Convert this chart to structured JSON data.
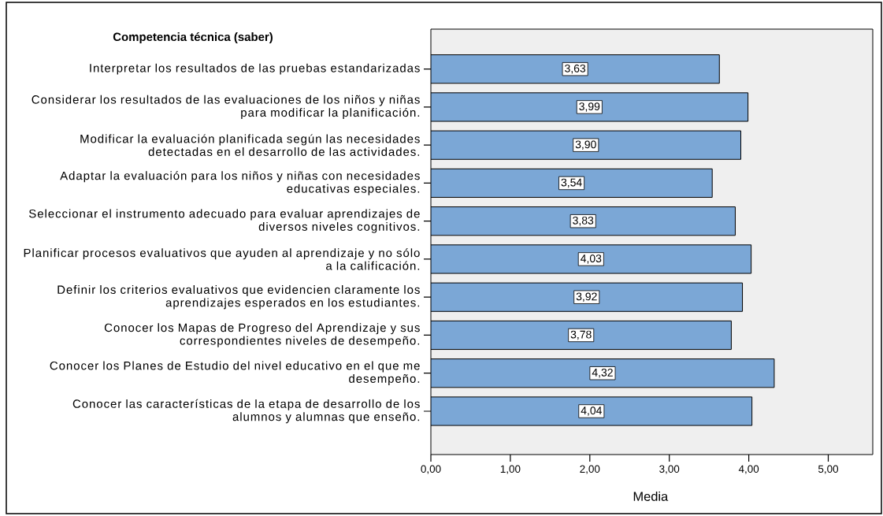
{
  "chart_data": {
    "type": "bar",
    "orientation": "horizontal",
    "title": "Competencia técnica (saber)",
    "xlabel": "Media",
    "categories": [
      "Interpretar los resultados de las pruebas estandarizadas",
      "Considerar los resultados de las evaluaciones de los niños y niñas para modificar la planificación.",
      "Modificar la evaluación planificada según las necesidades detectadas en el desarrollo de las actividades.",
      "Adaptar la evaluación para los niños y niñas con necesidades educativas especiales.",
      "Seleccionar el instrumento adecuado para evaluar aprendizajes de diversos niveles cognitivos.",
      "Planificar procesos evaluativos que ayuden al aprendizaje y no sólo a la calificación.",
      "Definir los criterios evaluativos que evidencien claramente los aprendizajes esperados en los estudiantes.",
      "Conocer los Mapas de Progreso del Aprendizaje y sus correspondientes niveles de desempeño.",
      "Conocer los Planes de Estudio del nivel educativo en el que me desempeño.",
      "Conocer las características de la etapa de desarrollo de los alumnos y alumnas que enseño."
    ],
    "values": [
      3.63,
      3.99,
      3.9,
      3.54,
      3.83,
      4.03,
      3.92,
      3.78,
      4.32,
      4.04
    ],
    "value_labels": [
      "3,63",
      "3,99",
      "3,90",
      "3,54",
      "3,83",
      "4,03",
      "3,92",
      "3,78",
      "4,32",
      "4,04"
    ],
    "color": "#7ba7d6",
    "xlim": [
      0,
      5.56
    ],
    "xticks": [
      {
        "value": 0,
        "label": "0,00"
      },
      {
        "value": 1,
        "label": "1,00"
      },
      {
        "value": 2,
        "label": "2,00"
      },
      {
        "value": 3,
        "label": "3,00"
      },
      {
        "value": 4,
        "label": "4,00"
      },
      {
        "value": 5,
        "label": "5,00"
      }
    ]
  }
}
